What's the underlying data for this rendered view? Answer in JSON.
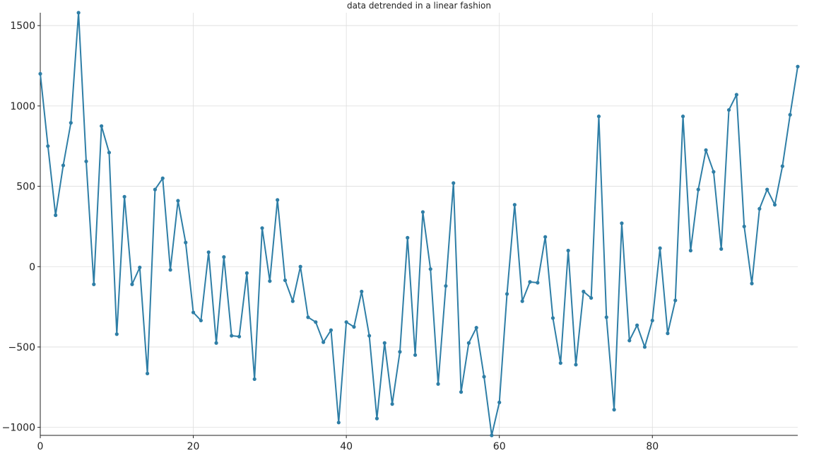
{
  "chart_data": {
    "type": "line",
    "title": "data detrended in a linear fashion",
    "xlabel": "",
    "ylabel": "",
    "xlim": [
      0,
      99
    ],
    "ylim": [
      -1050,
      1580
    ],
    "x_ticks": [
      0,
      20,
      40,
      60,
      80
    ],
    "y_ticks": [
      -1000,
      -500,
      0,
      500,
      1000,
      1500
    ],
    "grid": true,
    "color": "#2e7ea6",
    "series": [
      {
        "x": [
          0,
          1,
          2,
          3,
          4,
          5,
          6,
          7,
          8,
          9,
          10,
          11,
          12,
          13,
          14,
          15,
          16,
          17,
          18,
          19,
          20,
          21,
          22,
          23,
          24,
          25,
          26,
          27,
          28,
          29,
          30,
          31,
          32,
          33,
          34,
          35,
          36,
          37,
          38,
          39,
          40,
          41,
          42,
          43,
          44,
          45,
          46,
          47,
          48,
          49,
          50,
          51,
          52,
          53,
          54,
          55,
          56,
          57,
          58,
          59,
          60,
          61,
          62,
          63,
          64,
          65,
          66,
          67,
          68,
          69,
          70,
          71,
          72,
          73,
          74,
          75,
          76,
          77,
          78,
          79,
          80,
          81,
          82,
          83,
          84,
          85,
          86,
          87,
          88,
          89,
          90,
          91,
          92,
          93,
          94,
          95,
          96,
          97,
          98,
          99
        ],
        "values": [
          1200,
          750,
          320,
          630,
          895,
          1580,
          655,
          -110,
          875,
          710,
          -420,
          435,
          -110,
          -5,
          -665,
          480,
          550,
          -20,
          410,
          150,
          -285,
          -335,
          90,
          -475,
          60,
          -430,
          -435,
          -40,
          -700,
          240,
          -90,
          415,
          -85,
          -215,
          0,
          -315,
          -345,
          -470,
          -395,
          -970,
          -345,
          -375,
          -155,
          -430,
          -945,
          -475,
          -855,
          -530,
          180,
          -550,
          340,
          -15,
          -730,
          -120,
          520,
          -780,
          -475,
          -380,
          -685,
          -1050,
          -845,
          -170,
          385,
          -215,
          -95,
          -100,
          185,
          -320,
          -600,
          100,
          -610,
          -155,
          -195,
          935,
          -315,
          -890,
          270,
          -460,
          -365,
          -500,
          -335,
          115,
          -415,
          -210,
          935,
          100,
          480,
          725,
          590,
          110,
          975,
          1070,
          250,
          -105,
          360,
          480,
          385,
          625,
          945,
          1245
        ]
      }
    ]
  }
}
